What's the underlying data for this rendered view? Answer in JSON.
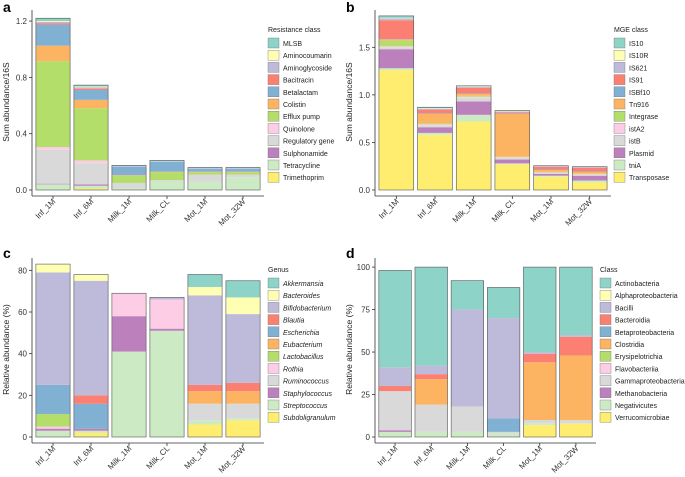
{
  "chart_data": [
    {
      "panel": "a",
      "type": "bar",
      "stacked": true,
      "ylabel": "Sum abundance/16S",
      "ylim": [
        0,
        1.25
      ],
      "yticks": [
        "0.0",
        "0.4",
        "0.8",
        "1.2"
      ],
      "ytick_values": [
        0,
        0.4,
        0.8,
        1.2
      ],
      "categories": [
        "Inf_1M",
        "Inf_6M",
        "Milk_1M",
        "Milk_CL",
        "Mot_1M",
        "Mot_32W"
      ],
      "legend_title": "Resistance class",
      "series": [
        {
          "name": "MLSB",
          "color": "#8dd3c7",
          "values": [
            0.02,
            0.01,
            0.005,
            0.005,
            0.005,
            0.005
          ]
        },
        {
          "name": "Aminocoumarin",
          "color": "#ffffb3",
          "values": [
            0.005,
            0.005,
            0,
            0,
            0,
            0
          ]
        },
        {
          "name": "Aminoglycoside",
          "color": "#bebada",
          "values": [
            0.01,
            0.01,
            0.005,
            0.005,
            0.005,
            0.005
          ]
        },
        {
          "name": "Bacitracin",
          "color": "#fb8072",
          "values": [
            0.01,
            0.01,
            0,
            0,
            0,
            0
          ]
        },
        {
          "name": "Betalactam",
          "color": "#80b1d3",
          "values": [
            0.15,
            0.07,
            0.06,
            0.07,
            0.02,
            0.02
          ]
        },
        {
          "name": "Colistin",
          "color": "#fdb462",
          "values": [
            0.11,
            0.06,
            0.005,
            0.005,
            0.005,
            0.005
          ]
        },
        {
          "name": "Efflux pump",
          "color": "#b3de69",
          "values": [
            0.61,
            0.37,
            0.05,
            0.055,
            0.015,
            0.015
          ]
        },
        {
          "name": "Quinolone",
          "color": "#fccde5",
          "values": [
            0.02,
            0.02,
            0,
            0,
            0,
            0
          ]
        },
        {
          "name": "Regulatory gene",
          "color": "#d9d9d9",
          "values": [
            0.24,
            0.15,
            0.04,
            0.01,
            0.05,
            0.02
          ]
        },
        {
          "name": "Sulphonamide",
          "color": "#bc80bd",
          "values": [
            0.005,
            0.01,
            0,
            0,
            0,
            0
          ]
        },
        {
          "name": "Tetracycline",
          "color": "#ccebc5",
          "values": [
            0.04,
            0.02,
            0.01,
            0.06,
            0.06,
            0.09
          ]
        },
        {
          "name": "Trimethoprim",
          "color": "#ffed6f",
          "values": [
            0,
            0.01,
            0,
            0,
            0,
            0
          ]
        }
      ]
    },
    {
      "panel": "b",
      "type": "bar",
      "stacked": true,
      "ylabel": "Sum abundance/16S",
      "ylim": [
        0,
        1.85
      ],
      "yticks": [
        "0.0",
        "0.5",
        "1.0",
        "1.5"
      ],
      "ytick_values": [
        0,
        0.5,
        1.0,
        1.5
      ],
      "categories": [
        "Inf_1M",
        "Inf_6M",
        "Milk_1M",
        "Milk_CL",
        "Mot_1M",
        "Mot_32W"
      ],
      "legend_title": "MGE class",
      "series": [
        {
          "name": "IS10",
          "color": "#8dd3c7",
          "values": [
            0.02,
            0.01,
            0.005,
            0.005,
            0.005,
            0.005
          ]
        },
        {
          "name": "IS10R",
          "color": "#ffffb3",
          "values": [
            0.005,
            0.005,
            0.005,
            0.005,
            0,
            0
          ]
        },
        {
          "name": "IS621",
          "color": "#bebada",
          "values": [
            0.02,
            0.01,
            0.01,
            0.01,
            0.005,
            0.005
          ]
        },
        {
          "name": "IS91",
          "color": "#fb8072",
          "values": [
            0.2,
            0.04,
            0.06,
            0.01,
            0.03,
            0.04
          ]
        },
        {
          "name": "ISBf10",
          "color": "#80b1d3",
          "values": [
            0.005,
            0.005,
            0.005,
            0.005,
            0.005,
            0.005
          ]
        },
        {
          "name": "Tn916",
          "color": "#fdb462",
          "values": [
            0.01,
            0.1,
            0.02,
            0.45,
            0.02,
            0.02
          ]
        },
        {
          "name": "Integrase",
          "color": "#b3de69",
          "values": [
            0.06,
            0.01,
            0.01,
            0.005,
            0.005,
            0.005
          ]
        },
        {
          "name": "istA2",
          "color": "#fccde5",
          "values": [
            0.01,
            0.01,
            0.01,
            0.005,
            0.005,
            0.005
          ]
        },
        {
          "name": "istB",
          "color": "#d9d9d9",
          "values": [
            0.02,
            0.02,
            0.04,
            0.02,
            0.01,
            0.01
          ]
        },
        {
          "name": "Plasmid",
          "color": "#bc80bd",
          "values": [
            0.2,
            0.06,
            0.14,
            0.04,
            0.02,
            0.05
          ]
        },
        {
          "name": "tniA",
          "color": "#ccebc5",
          "values": [
            0.02,
            0.02,
            0.07,
            0.01,
            0.01,
            0.02
          ]
        },
        {
          "name": "Transposase",
          "color": "#ffed6f",
          "values": [
            1.26,
            0.58,
            0.72,
            0.27,
            0.14,
            0.08
          ]
        }
      ]
    },
    {
      "panel": "c",
      "type": "bar",
      "stacked": true,
      "ylabel": "Relative abundance (%)",
      "ylim": [
        0,
        84
      ],
      "yticks": [
        "0",
        "20",
        "40",
        "60",
        "80"
      ],
      "ytick_values": [
        0,
        20,
        40,
        60,
        80
      ],
      "categories": [
        "Inf_1M",
        "Inf_6M",
        "Milk_1M",
        "Milk_CL",
        "Mot_1M",
        "Mot_32W"
      ],
      "legend_title": "Genus",
      "series": [
        {
          "name": "Akkermansia",
          "color": "#8dd3c7",
          "values": [
            0,
            0,
            0,
            0,
            6,
            8
          ]
        },
        {
          "name": "Bacteroides",
          "color": "#ffffb3",
          "values": [
            4,
            3,
            0,
            0,
            4,
            8
          ]
        },
        {
          "name": "Bifidobacterium",
          "color": "#bebada",
          "values": [
            54,
            55,
            0,
            1,
            43,
            33
          ]
        },
        {
          "name": "Blautia",
          "color": "#fb8072",
          "values": [
            0,
            4,
            0,
            0,
            3,
            4
          ]
        },
        {
          "name": "Escherichia",
          "color": "#80b1d3",
          "values": [
            14,
            12,
            0,
            0,
            0,
            0
          ]
        },
        {
          "name": "Eubacterium",
          "color": "#fdb462",
          "values": [
            0,
            0,
            0,
            0,
            6,
            6
          ]
        },
        {
          "name": "Lactobacillus",
          "color": "#b3de69",
          "values": [
            6,
            0,
            0,
            0,
            0,
            0
          ]
        },
        {
          "name": "Rothia",
          "color": "#fccde5",
          "values": [
            1,
            0,
            11,
            14,
            0,
            0
          ]
        },
        {
          "name": "Ruminococcus",
          "color": "#d9d9d9",
          "values": [
            0,
            0,
            0,
            0,
            8,
            7
          ]
        },
        {
          "name": "Staphylococcus",
          "color": "#bc80bd",
          "values": [
            1,
            1,
            17,
            1,
            0,
            0
          ]
        },
        {
          "name": "Streptococcus",
          "color": "#ccebc5",
          "values": [
            3,
            1,
            41,
            51,
            2,
            1
          ]
        },
        {
          "name": "Subdoligranulum",
          "color": "#ffed6f",
          "values": [
            0,
            2,
            0,
            0,
            6,
            8
          ]
        }
      ]
    },
    {
      "panel": "d",
      "type": "bar",
      "stacked": true,
      "ylabel": "Relative abundance (%)",
      "ylim": [
        0,
        103
      ],
      "yticks": [
        "0",
        "25",
        "50",
        "75",
        "100"
      ],
      "ytick_values": [
        0,
        25,
        50,
        75,
        100
      ],
      "categories": [
        "Inf_1M",
        "Inf_6M",
        "Milk_1M",
        "Milk_CL",
        "Mot_1M",
        "Mot_32W"
      ],
      "legend_title": "Class",
      "series": [
        {
          "name": "Actinobacteria",
          "color": "#8dd3c7",
          "values": [
            57,
            58,
            17,
            18,
            50,
            40
          ]
        },
        {
          "name": "Alphaproteobacteria",
          "color": "#ffffb3",
          "values": [
            0,
            0,
            0,
            0,
            0,
            0
          ]
        },
        {
          "name": "Bacilli",
          "color": "#bebada",
          "values": [
            11,
            5,
            57,
            59,
            1,
            1
          ]
        },
        {
          "name": "Bacteroidia",
          "color": "#fb8072",
          "values": [
            3,
            3,
            0,
            0,
            5,
            11
          ]
        },
        {
          "name": "Betaproteobacteria",
          "color": "#80b1d3",
          "values": [
            0,
            0,
            0,
            8,
            0,
            0
          ]
        },
        {
          "name": "Clostridia",
          "color": "#fdb462",
          "values": [
            0,
            15,
            0,
            0,
            34,
            38
          ]
        },
        {
          "name": "Erysipelotrichia",
          "color": "#b3de69",
          "values": [
            0,
            0,
            0,
            0,
            0,
            0
          ]
        },
        {
          "name": "Flavobacteriia",
          "color": "#fccde5",
          "values": [
            0,
            0,
            0,
            0,
            0,
            0
          ]
        },
        {
          "name": "Gammaproteobacteria",
          "color": "#d9d9d9",
          "values": [
            23,
            16,
            15,
            1,
            2,
            2
          ]
        },
        {
          "name": "Methanobacteria",
          "color": "#bc80bd",
          "values": [
            1,
            0,
            0,
            0,
            0,
            0
          ]
        },
        {
          "name": "Negativicutes",
          "color": "#ccebc5",
          "values": [
            3,
            3,
            3,
            2,
            1,
            0
          ]
        },
        {
          "name": "Verrucomicrobiae",
          "color": "#ffed6f",
          "values": [
            0,
            0,
            0,
            0,
            7,
            8
          ]
        }
      ]
    }
  ]
}
